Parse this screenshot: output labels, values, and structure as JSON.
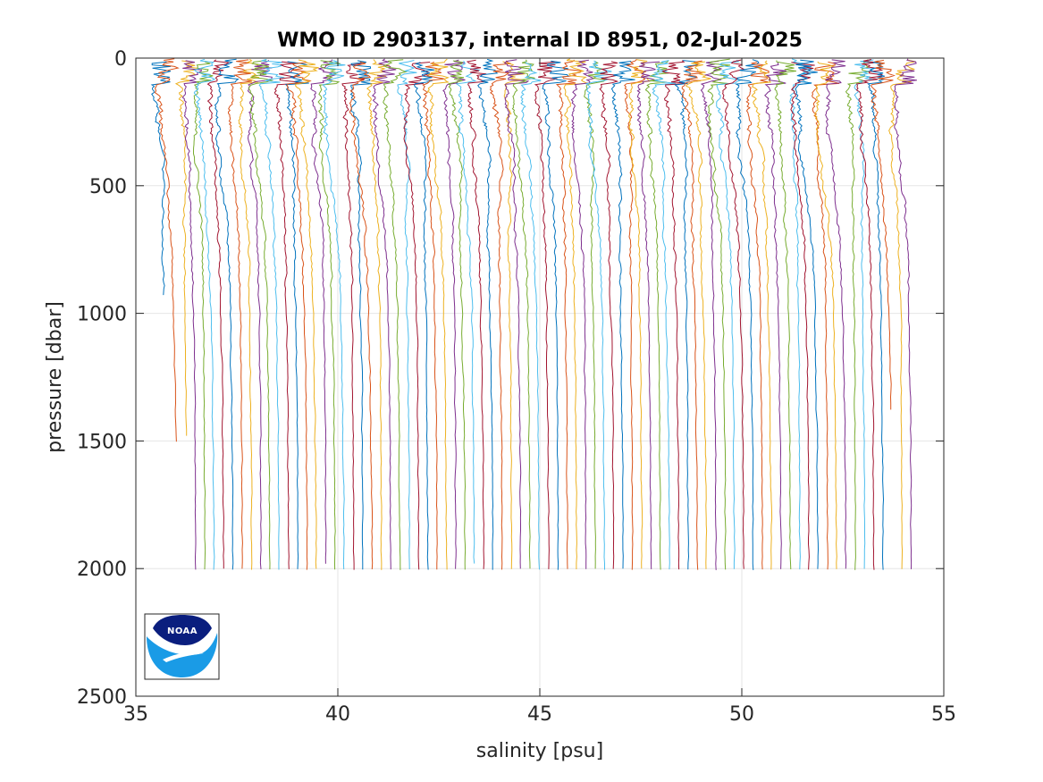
{
  "chart_data": {
    "type": "line",
    "title": "WMO ID 2903137, internal ID 8951, 02-Jul-2025",
    "xlabel": "salinity [psu]",
    "ylabel": "pressure [dbar]",
    "xlim": [
      35,
      55
    ],
    "ylim": [
      0,
      2500
    ],
    "y_reversed": true,
    "x_ticks": [
      35,
      40,
      45,
      50,
      55
    ],
    "y_ticks": [
      0,
      500,
      1000,
      1500,
      2000,
      2500
    ],
    "x_tick_labels": [
      "35",
      "40",
      "45",
      "50",
      "55"
    ],
    "y_tick_labels": [
      "0",
      "500",
      "1000",
      "1500",
      "2000",
      "2500"
    ],
    "grid": true,
    "legend": "none",
    "profile_count": 81,
    "profile_offset_step_psu": 0.23,
    "first_profile_deep_salinity": 35.8,
    "color_cycle": [
      "#0072BD",
      "#D95319",
      "#EDB120",
      "#7E2F8E",
      "#77AC30",
      "#4DBEEE",
      "#A2142F"
    ],
    "logo": {
      "name": "NOAA",
      "text": "NOAA"
    }
  }
}
